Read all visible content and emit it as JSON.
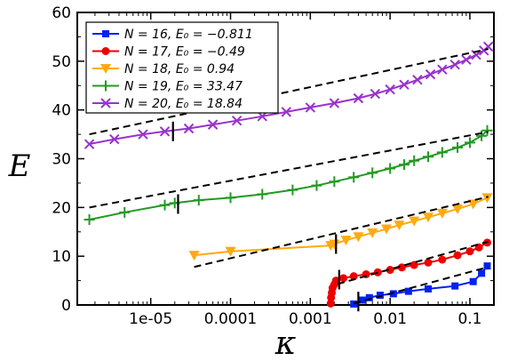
{
  "chart_data": {
    "type": "line",
    "xlabel": "κ",
    "ylabel": "E",
    "xscale": "log",
    "xlim": [
      1.2e-06,
      0.2
    ],
    "ylim": [
      0,
      60
    ],
    "xticks": [
      {
        "value": 1e-05,
        "label": "1e-05"
      },
      {
        "value": 0.0001,
        "label": "0.0001"
      },
      {
        "value": 0.001,
        "label": "0.001"
      },
      {
        "value": 0.01,
        "label": "0.01"
      },
      {
        "value": 0.1,
        "label": "0.1"
      }
    ],
    "yticks": [
      0,
      10,
      20,
      30,
      40,
      50,
      60
    ],
    "grid": false,
    "legend_position": "top-left",
    "series": [
      {
        "name_n": "N = 16,",
        "name_e": "E₀ = −0.811",
        "color": "#0022ee",
        "marker": "square",
        "x": [
          0.0035,
          0.0045,
          0.0055,
          0.0075,
          0.011,
          0.017,
          0.03,
          0.065,
          0.11,
          0.14,
          0.165
        ],
        "y": [
          0.2,
          1.0,
          1.5,
          2.0,
          2.3,
          2.8,
          3.3,
          3.9,
          4.8,
          6.5,
          8.0
        ]
      },
      {
        "name_n": "N = 17,",
        "name_e": "E₀ = −0.49",
        "color": "#ee0000",
        "marker": "circle",
        "x": [
          0.0018,
          0.00182,
          0.00186,
          0.0019,
          0.002,
          0.0021,
          0.0026,
          0.0035,
          0.005,
          0.007,
          0.01,
          0.014,
          0.02,
          0.03,
          0.045,
          0.07,
          0.1,
          0.13,
          0.165
        ],
        "y": [
          0.3,
          1.5,
          2.5,
          3.5,
          4.2,
          5.0,
          5.5,
          5.9,
          6.3,
          6.7,
          7.2,
          7.7,
          8.2,
          8.7,
          9.3,
          10.2,
          11.0,
          11.8,
          12.8
        ]
      },
      {
        "name_n": "N = 18,",
        "name_e": "E₀ = 0.94",
        "color": "#ffaa11",
        "marker": "triangle-down",
        "x": [
          3.5e-05,
          0.0001,
          0.0018,
          0.002,
          0.0028,
          0.004,
          0.006,
          0.009,
          0.013,
          0.02,
          0.03,
          0.045,
          0.07,
          0.11,
          0.165
        ],
        "y": [
          10.2,
          11.0,
          12.2,
          12.5,
          13.3,
          14.0,
          14.8,
          15.6,
          16.4,
          17.2,
          18.0,
          18.8,
          19.7,
          20.7,
          22.0
        ]
      },
      {
        "name_n": "N = 19,",
        "name_e": "E₀ = 33.47",
        "color": "#229922",
        "marker": "plus",
        "x": [
          1.7e-06,
          4.7e-06,
          1.5e-05,
          2e-05,
          4e-05,
          0.0001,
          0.00025,
          0.0006,
          0.0012,
          0.002,
          0.0035,
          0.006,
          0.01,
          0.015,
          0.02,
          0.03,
          0.045,
          0.07,
          0.1,
          0.14,
          0.165
        ],
        "y": [
          17.5,
          19.0,
          20.5,
          20.9,
          21.5,
          22.0,
          22.7,
          23.6,
          24.5,
          25.3,
          26.2,
          27.1,
          28.0,
          28.8,
          29.6,
          30.4,
          31.3,
          32.3,
          33.3,
          34.7,
          35.8
        ]
      },
      {
        "name_n": "N = 20,",
        "name_e": "E₀ = 18.84",
        "color": "#9933cc",
        "marker": "x",
        "x": [
          1.7e-06,
          3.5e-06,
          8e-06,
          1.5e-05,
          3e-05,
          6e-05,
          0.00012,
          0.00025,
          0.0005,
          0.001,
          0.002,
          0.004,
          0.0065,
          0.01,
          0.015,
          0.022,
          0.032,
          0.045,
          0.065,
          0.09,
          0.12,
          0.15,
          0.17
        ],
        "y": [
          33.0,
          34.0,
          35.0,
          35.6,
          36.2,
          37.0,
          37.8,
          38.7,
          39.6,
          40.5,
          41.4,
          42.4,
          43.3,
          44.2,
          45.2,
          46.2,
          47.3,
          48.3,
          49.3,
          50.3,
          51.3,
          52.2,
          53.0
        ]
      }
    ],
    "fits": [
      {
        "x": [
          0.0035,
          0.17
        ],
        "y": [
          0.3,
          7.8
        ]
      },
      {
        "x": [
          0.0022,
          0.17
        ],
        "y": [
          4.3,
          13.0
        ]
      },
      {
        "x": [
          3.5e-05,
          0.17
        ],
        "y": [
          7.8,
          22.2
        ]
      },
      {
        "x": [
          1.7e-06,
          0.17
        ],
        "y": [
          20.0,
          35.5
        ]
      },
      {
        "x": [
          1.7e-06,
          0.17
        ],
        "y": [
          35.0,
          52.5
        ]
      }
    ],
    "vmarks": [
      {
        "x": 0.004,
        "y": 0.7
      },
      {
        "x": 0.0023,
        "y": 5.2
      },
      {
        "x": 0.0021,
        "y": 12.5
      },
      {
        "x": 2.2e-05,
        "y": 20.7
      },
      {
        "x": 1.9e-05,
        "y": 35.6
      }
    ]
  }
}
